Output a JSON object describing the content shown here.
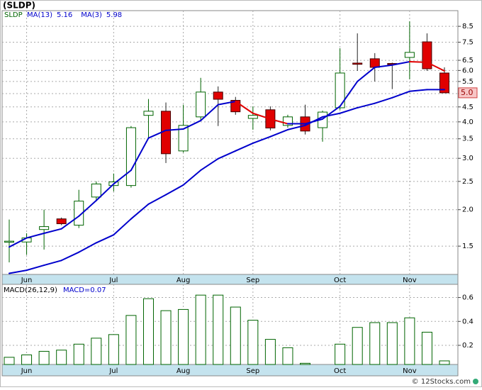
{
  "chart_data": [
    {
      "type": "candlestick",
      "title": "(SLDP)",
      "symbol": "SLDP",
      "categories": [
        null,
        "Jun",
        null,
        null,
        null,
        null,
        "Jul",
        null,
        null,
        null,
        "Aug",
        null,
        null,
        null,
        "Sep",
        null,
        null,
        null,
        null,
        "Oct",
        null,
        null,
        null,
        "Nov",
        null,
        null
      ],
      "open": [
        1.55,
        1.55,
        1.71,
        1.86,
        1.77,
        2.21,
        2.42,
        2.42,
        4.21,
        4.35,
        3.18,
        4.16,
        5.06,
        4.74,
        4.11,
        4.4,
        3.89,
        4.16,
        3.82,
        4.47,
        6.36,
        6.58,
        6.34,
        6.65,
        7.52,
        5.88
      ],
      "high": [
        1.85,
        1.66,
        2.0,
        1.88,
        2.34,
        2.5,
        2.66,
        3.87,
        4.79,
        4.66,
        4.58,
        5.66,
        5.29,
        4.87,
        4.52,
        4.52,
        4.23,
        4.58,
        4.37,
        7.15,
        8.04,
        6.88,
        6.38,
        8.84,
        8.04,
        6.15
      ],
      "low": [
        1.32,
        1.4,
        1.46,
        1.77,
        1.73,
        2.16,
        2.31,
        2.38,
        3.52,
        2.89,
        3.14,
        4.04,
        3.87,
        4.23,
        3.76,
        3.74,
        3.82,
        3.62,
        3.42,
        4.4,
        5.98,
        5.5,
        5.18,
        5.6,
        5.98,
        5.03
      ],
      "close": [
        1.56,
        1.6,
        1.75,
        1.79,
        2.14,
        2.45,
        2.49,
        3.82,
        4.35,
        3.11,
        3.89,
        5.06,
        4.78,
        4.33,
        4.21,
        3.81,
        4.16,
        3.72,
        4.32,
        5.88,
        6.3,
        6.15,
        6.3,
        6.92,
        6.08,
        5.03
      ],
      "up_color": "#006400",
      "down_color": "#e00000",
      "series": [
        {
          "name": "MA(13)",
          "legend_value": 5.16,
          "color": "#0000cc",
          "values": [
            1.21,
            1.24,
            1.29,
            1.34,
            1.43,
            1.54,
            1.64,
            1.86,
            2.09,
            2.25,
            2.43,
            2.73,
            2.99,
            3.18,
            3.38,
            3.56,
            3.76,
            3.89,
            4.16,
            4.28,
            4.47,
            4.63,
            4.84,
            5.09,
            5.16,
            5.16
          ]
        },
        {
          "name": "MA(3)",
          "legend_value": 5.98,
          "color": "#0000cc",
          "falling_color": "#e00000",
          "values": [
            1.49,
            1.6,
            1.66,
            1.72,
            1.9,
            2.15,
            2.45,
            2.73,
            3.52,
            3.74,
            3.78,
            4.04,
            4.58,
            4.7,
            4.28,
            4.09,
            3.94,
            3.94,
            4.09,
            4.52,
            5.5,
            6.15,
            6.26,
            6.43,
            6.4,
            5.98
          ]
        }
      ],
      "last_price": {
        "value": 5.03,
        "label": "5.0"
      },
      "log_scale": true,
      "grid": true,
      "ylim": [
        1.2,
        9.62
      ],
      "yticks": [
        1.5,
        {
          "value": 2,
          "label": "2.0"
        },
        2.5,
        {
          "value": 3,
          "label": "3.0"
        },
        3.5,
        {
          "value": 4,
          "label": "4.0"
        },
        4.5,
        {
          "value": 5,
          "label": "5.0"
        },
        5.5,
        {
          "value": 6,
          "label": "6.0"
        },
        6.5,
        7.5,
        8.5
      ]
    },
    {
      "type": "bar",
      "title": "MACD(26,12,9)",
      "current": {
        "value": 0.07,
        "label": "MACD=0.07"
      },
      "categories": [
        null,
        "Jun",
        null,
        null,
        null,
        null,
        "Jul",
        null,
        null,
        null,
        "Aug",
        null,
        null,
        null,
        "Sep",
        null,
        null,
        null,
        null,
        "Oct",
        null,
        null,
        null,
        "Nov",
        null,
        null
      ],
      "values": [
        0.1,
        0.12,
        0.15,
        0.16,
        0.21,
        0.26,
        0.29,
        0.45,
        0.59,
        0.49,
        0.5,
        0.62,
        0.62,
        0.52,
        0.41,
        0.25,
        0.18,
        0.05,
        0.04,
        0.21,
        0.35,
        0.39,
        0.39,
        0.43,
        0.31,
        0.07
      ],
      "color": "#006400",
      "grid": true,
      "ylim": [
        0.04,
        0.71
      ],
      "yticks": [
        0.2,
        0.4,
        0.6
      ]
    }
  ],
  "footer": "© 12Stocks.com"
}
